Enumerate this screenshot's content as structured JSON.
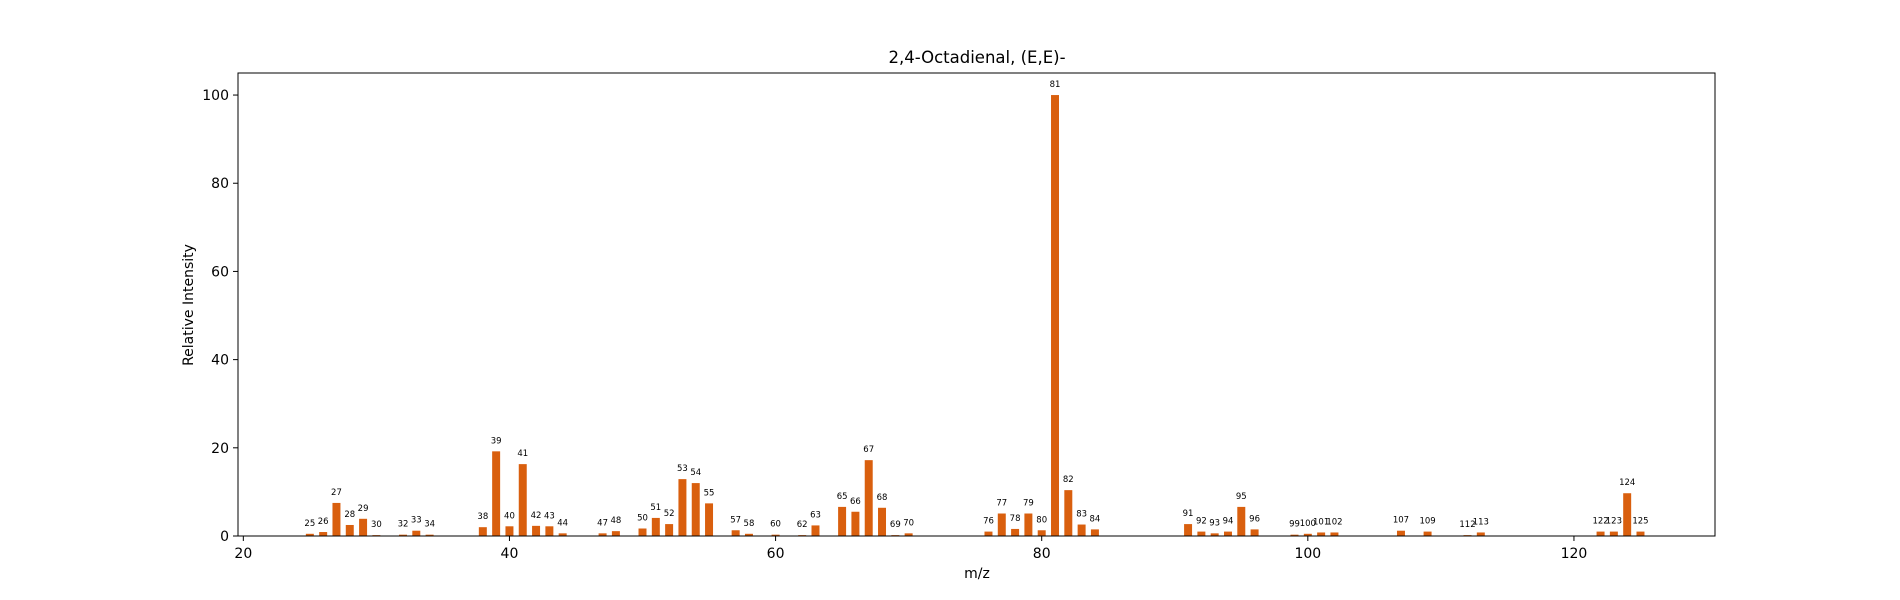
{
  "chart_data": {
    "type": "bar",
    "title": "2,4-Octadienal, (E,E)-",
    "xlabel": "m/z",
    "ylabel": "Relative Intensity",
    "xlim": [
      19.6,
      130.6
    ],
    "ylim": [
      0,
      105
    ],
    "xticks": [
      20,
      40,
      60,
      80,
      100,
      120
    ],
    "yticks": [
      0,
      20,
      40,
      60,
      80,
      100
    ],
    "grid": false,
    "bar_color": "#d95f0e",
    "bar_width": 0.6,
    "x": [
      25,
      26,
      27,
      28,
      29,
      30,
      32,
      33,
      34,
      38,
      39,
      40,
      41,
      42,
      43,
      44,
      47,
      48,
      50,
      51,
      52,
      53,
      54,
      55,
      57,
      58,
      60,
      62,
      63,
      65,
      66,
      67,
      68,
      69,
      70,
      76,
      77,
      78,
      79,
      80,
      81,
      82,
      83,
      84,
      91,
      92,
      93,
      94,
      95,
      96,
      99,
      100,
      101,
      102,
      107,
      109,
      112,
      113,
      122,
      123,
      124,
      125
    ],
    "values": [
      0.5,
      0.9,
      7.5,
      2.5,
      3.9,
      0.2,
      0.3,
      1.2,
      0.3,
      2.0,
      19.2,
      2.2,
      16.3,
      2.3,
      2.2,
      0.6,
      0.6,
      1.1,
      1.7,
      4.1,
      2.7,
      12.9,
      12.0,
      7.4,
      1.3,
      0.5,
      0.3,
      0.2,
      2.4,
      6.6,
      5.5,
      17.2,
      6.4,
      0.2,
      0.6,
      1.0,
      5.1,
      1.6,
      5.1,
      1.3,
      100.0,
      10.4,
      2.6,
      1.5,
      2.7,
      1.0,
      0.6,
      1.0,
      6.6,
      1.5,
      0.3,
      0.5,
      0.8,
      0.8,
      1.2,
      1.0,
      0.2,
      0.8,
      1.0,
      1.0,
      9.7,
      1.0
    ]
  }
}
